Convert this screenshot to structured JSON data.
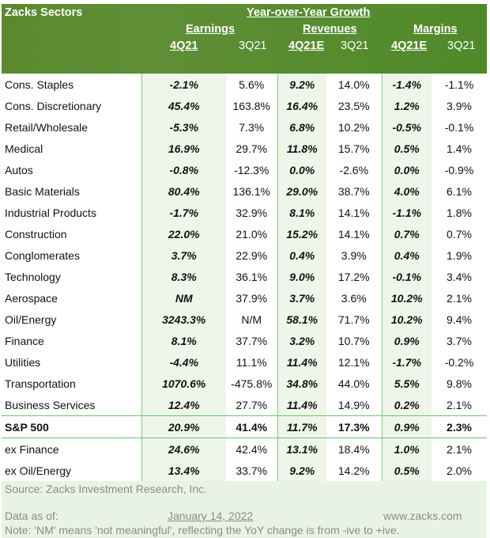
{
  "header": {
    "sectors": "Zacks Sectors",
    "group": "Year-over-Year Growth",
    "earnings": "Earnings",
    "revenues": "Revenues",
    "margins": "Margins",
    "cols": [
      "4Q21",
      "3Q21",
      "4Q21E",
      "3Q21",
      "4Q21E",
      "3Q21"
    ]
  },
  "rows": [
    [
      "Cons. Staples",
      "-2.1%",
      "5.6%",
      "9.2%",
      "14.0%",
      "-1.4%",
      "-1.1%"
    ],
    [
      "Cons. Discretionary",
      "45.4%",
      "163.8%",
      "16.4%",
      "23.5%",
      "1.2%",
      "3.9%"
    ],
    [
      "Retail/Wholesale",
      "-5.3%",
      "7.3%",
      "6.8%",
      "10.2%",
      "-0.5%",
      "-0.1%"
    ],
    [
      "Medical",
      "16.9%",
      "29.7%",
      "11.8%",
      "15.7%",
      "0.5%",
      "1.4%"
    ],
    [
      "Autos",
      "-0.8%",
      "-12.3%",
      "0.0%",
      "-2.6%",
      "0.0%",
      "-0.9%"
    ],
    [
      "Basic Materials",
      "80.4%",
      "136.1%",
      "29.0%",
      "38.7%",
      "4.0%",
      "6.1%"
    ],
    [
      "Industrial Products",
      "-1.7%",
      "32.9%",
      "8.1%",
      "14.1%",
      "-1.1%",
      "1.8%"
    ],
    [
      "Construction",
      "22.0%",
      "21.0%",
      "15.2%",
      "14.1%",
      "0.7%",
      "0.7%"
    ],
    [
      "Conglomerates",
      "3.7%",
      "22.9%",
      "0.4%",
      "3.9%",
      "0.4%",
      "1.9%"
    ],
    [
      "Technology",
      "8.3%",
      "36.1%",
      "9.0%",
      "17.2%",
      "-0.1%",
      "3.4%"
    ],
    [
      "Aerospace",
      "NM",
      "37.9%",
      "3.7%",
      "3.6%",
      "10.2%",
      "2.1%"
    ],
    [
      "Oil/Energy",
      "3243.3%",
      "N/M",
      "58.1%",
      "71.7%",
      "10.2%",
      "9.4%"
    ],
    [
      "Finance",
      "8.1%",
      "37.7%",
      "3.2%",
      "10.7%",
      "0.9%",
      "3.7%"
    ],
    [
      "Utilities",
      "-4.4%",
      "11.1%",
      "11.4%",
      "12.1%",
      "-1.7%",
      "-0.2%"
    ],
    [
      "Transportation",
      "1070.6%",
      "-475.8%",
      "34.8%",
      "44.0%",
      "5.5%",
      "9.8%"
    ],
    [
      "Business Services",
      "12.4%",
      "27.7%",
      "11.4%",
      "14.9%",
      "0.2%",
      "2.1%"
    ],
    [
      "S&P 500",
      "20.9%",
      "41.4%",
      "11.7%",
      "17.3%",
      "0.9%",
      "2.3%"
    ],
    [
      "ex Finance",
      "24.6%",
      "42.4%",
      "13.1%",
      "18.4%",
      "1.0%",
      "2.1%"
    ],
    [
      "ex Oil/Energy",
      "13.4%",
      "33.7%",
      "9.2%",
      "14.2%",
      "0.5%",
      "2.0%"
    ]
  ],
  "footer": {
    "source": "Source: Zacks Investment Research, Inc.",
    "data_as_of": "Data as of:",
    "date": "January 14, 2022",
    "site": "www.zacks.com",
    "note": "Note: 'NM' means 'not meaningful', reflecting the YoY change is from -ive to +ive."
  }
}
